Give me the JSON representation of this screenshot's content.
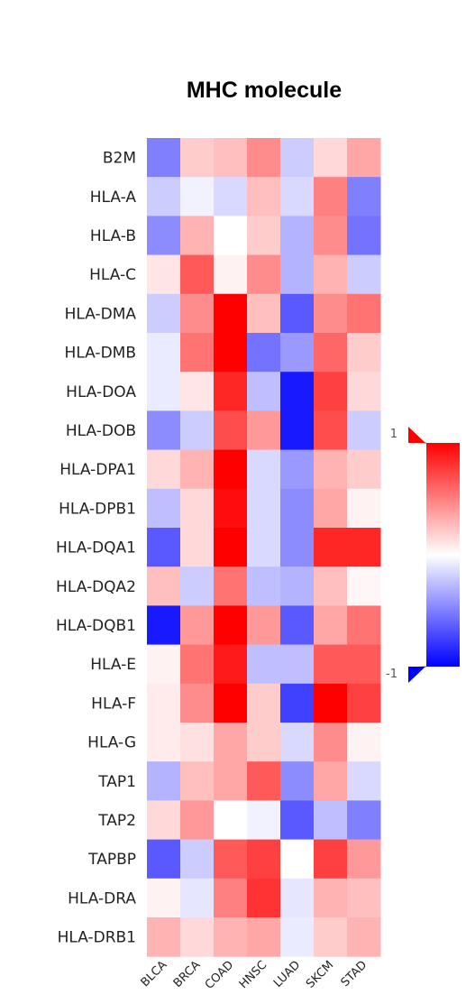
{
  "chart_data": {
    "type": "heatmap",
    "title": "MHC molecule",
    "columns": [
      "BLCA",
      "BRCA",
      "COAD",
      "HNSC",
      "LUAD",
      "SKCM",
      "STAD"
    ],
    "rows": [
      "B2M",
      "HLA-A",
      "HLA-B",
      "HLA-C",
      "HLA-DMA",
      "HLA-DMB",
      "HLA-DOA",
      "HLA-DOB",
      "HLA-DPA1",
      "HLA-DPB1",
      "HLA-DQA1",
      "HLA-DQA2",
      "HLA-DQB1",
      "HLA-E",
      "HLA-F",
      "HLA-G",
      "TAP1",
      "TAP2",
      "TAPBP",
      "HLA-DRA",
      "HLA-DRB1"
    ],
    "values": [
      [
        -0.5,
        0.2,
        0.25,
        0.45,
        -0.2,
        0.15,
        0.35
      ],
      [
        -0.2,
        -0.05,
        -0.15,
        0.25,
        -0.15,
        0.5,
        -0.5
      ],
      [
        -0.45,
        0.3,
        0.0,
        0.2,
        -0.3,
        0.45,
        -0.55
      ],
      [
        0.1,
        0.65,
        0.05,
        0.45,
        -0.3,
        0.3,
        -0.2
      ],
      [
        -0.2,
        0.45,
        1.0,
        0.25,
        -0.65,
        0.45,
        0.55
      ],
      [
        -0.08,
        0.55,
        1.0,
        -0.55,
        -0.4,
        0.6,
        0.2
      ],
      [
        -0.08,
        0.1,
        0.85,
        -0.25,
        -0.9,
        0.75,
        0.15
      ],
      [
        -0.45,
        -0.2,
        0.7,
        0.4,
        -0.9,
        0.7,
        -0.2
      ],
      [
        0.15,
        0.3,
        1.0,
        -0.15,
        -0.4,
        0.3,
        0.2
      ],
      [
        -0.25,
        0.15,
        0.95,
        -0.15,
        -0.45,
        0.35,
        0.05
      ],
      [
        -0.65,
        0.15,
        1.0,
        -0.15,
        -0.45,
        0.85,
        0.85
      ],
      [
        0.25,
        -0.2,
        0.55,
        -0.25,
        -0.3,
        0.25,
        0.03
      ],
      [
        -0.9,
        0.4,
        1.0,
        0.4,
        -0.65,
        0.35,
        0.55
      ],
      [
        0.05,
        0.55,
        0.9,
        -0.25,
        -0.25,
        0.65,
        0.65
      ],
      [
        0.08,
        0.45,
        1.0,
        0.2,
        -0.75,
        1.0,
        0.75
      ],
      [
        0.08,
        0.12,
        0.35,
        0.2,
        -0.15,
        0.45,
        0.05
      ],
      [
        -0.3,
        0.25,
        0.35,
        0.65,
        -0.45,
        0.35,
        -0.15
      ],
      [
        0.15,
        0.4,
        0.0,
        -0.05,
        -0.65,
        -0.25,
        -0.5
      ],
      [
        -0.65,
        -0.2,
        0.65,
        0.75,
        0.0,
        0.75,
        0.4
      ],
      [
        0.05,
        -0.1,
        0.5,
        0.8,
        -0.1,
        0.3,
        0.25
      ],
      [
        0.3,
        0.15,
        0.3,
        0.35,
        -0.08,
        0.2,
        0.3
      ]
    ],
    "colorbar": {
      "min": -1,
      "max": 1,
      "min_label": "-1",
      "max_label": "1",
      "colors": {
        "low": "#0000ff",
        "mid": "#ffffff",
        "high": "#ff0000"
      }
    },
    "legend_position": "right"
  }
}
